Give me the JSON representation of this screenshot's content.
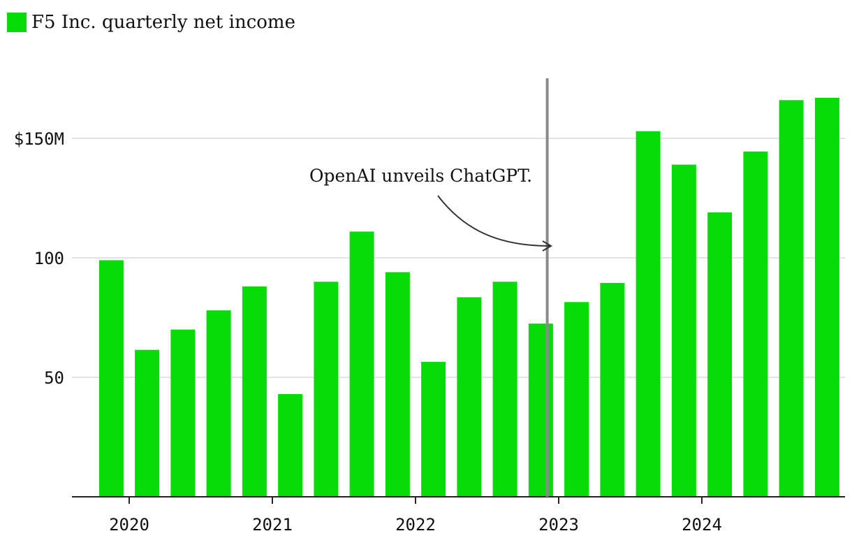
{
  "chart_data": {
    "type": "bar",
    "legend": {
      "label": "F5 Inc. quarterly net income",
      "color": "#08dc08"
    },
    "series": [
      {
        "name": "F5 Inc. quarterly net income",
        "color": "#08dc08",
        "x": [
          2019.875,
          2020.125,
          2020.375,
          2020.625,
          2020.875,
          2021.125,
          2021.375,
          2021.625,
          2021.875,
          2022.125,
          2022.375,
          2022.625,
          2022.875,
          2023.125,
          2023.375,
          2023.625,
          2023.875,
          2024.125,
          2024.375,
          2024.625,
          2024.875
        ],
        "values": [
          99,
          61.5,
          70,
          78,
          88,
          43,
          90,
          111,
          94,
          56.5,
          83.5,
          90,
          72.5,
          81.5,
          89.5,
          153,
          139,
          119,
          144.5,
          166,
          167
        ]
      }
    ],
    "y_ticks": [
      {
        "value": 50,
        "label": "50"
      },
      {
        "value": 100,
        "label": "100"
      },
      {
        "value": 150,
        "label": "$150M"
      }
    ],
    "x_ticks": [
      {
        "value": 2020,
        "label": "2020"
      },
      {
        "value": 2021,
        "label": "2021"
      },
      {
        "value": 2022,
        "label": "2022"
      },
      {
        "value": 2023,
        "label": "2023"
      },
      {
        "value": 2024,
        "label": "2024"
      }
    ],
    "ylim": [
      0,
      175
    ],
    "xlim": [
      2019.6,
      2025.0
    ],
    "grid": true,
    "annotation": {
      "text": "OpenAI unveils ChatGPT.",
      "event_x": 2022.92
    }
  }
}
